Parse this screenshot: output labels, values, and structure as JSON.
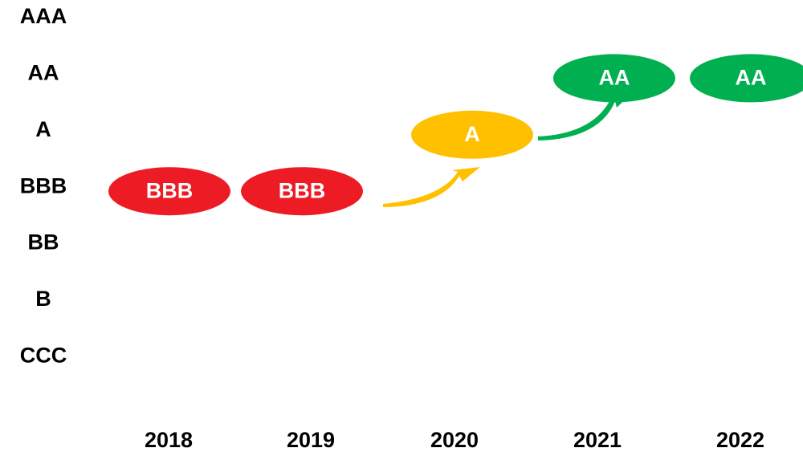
{
  "levels": [
    "AAA",
    "AA",
    "A",
    "BBB",
    "BB",
    "B",
    "CCC"
  ],
  "years": [
    "2018",
    "2019",
    "2020",
    "2021",
    "2022"
  ],
  "ratings": [
    {
      "rating": "BBB",
      "color": "#ed1c24"
    },
    {
      "rating": "BBB",
      "color": "#ed1c24"
    },
    {
      "rating": "A",
      "color": "#ffc000"
    },
    {
      "rating": "AA",
      "color": "#00b050"
    },
    {
      "rating": "AA",
      "color": "#00b050"
    }
  ]
}
